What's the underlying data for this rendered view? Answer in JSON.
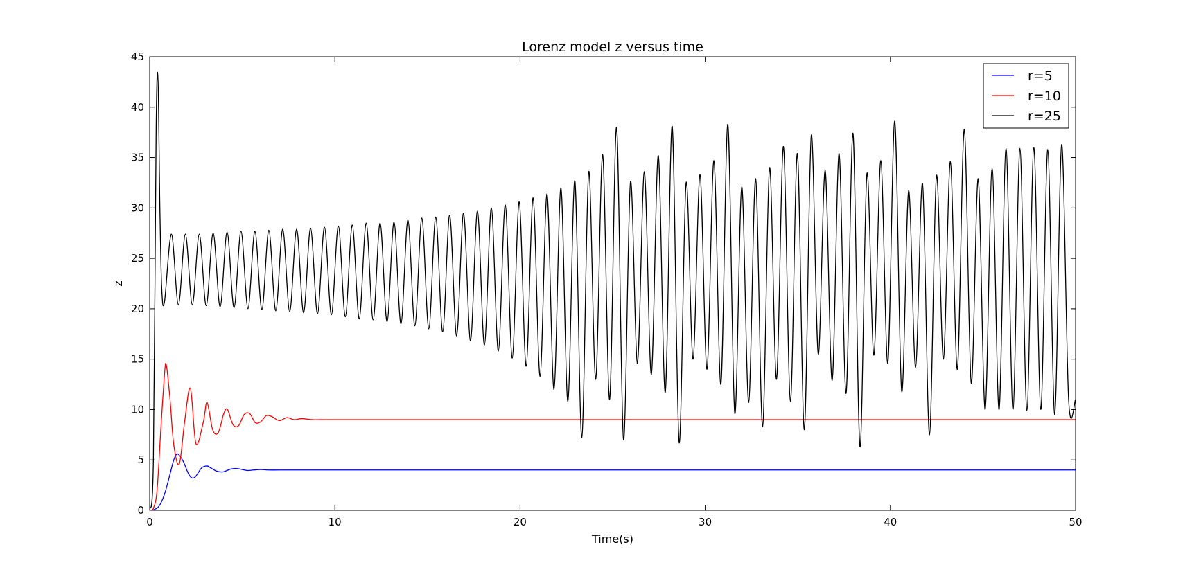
{
  "chart_data": {
    "type": "line",
    "title": "Lorenz model z versus time",
    "xlabel": "Time(s)",
    "ylabel": "z",
    "xlim": [
      0,
      50
    ],
    "ylim": [
      0,
      45
    ],
    "xticks": [
      "0",
      "10",
      "20",
      "30",
      "40",
      "50"
    ],
    "yticks": [
      "0",
      "5",
      "10",
      "15",
      "20",
      "25",
      "30",
      "35",
      "40",
      "45"
    ],
    "grid": false,
    "legend_position": "top-right",
    "series": [
      {
        "name": "r=5",
        "color": "#0000ff",
        "x": [
          0,
          0.2,
          0.5,
          0.8,
          1.1,
          1.3,
          1.5,
          1.8,
          2.1,
          2.3,
          2.5,
          2.8,
          3.1,
          3.3,
          3.6,
          3.9,
          4.1,
          4.4,
          4.7,
          5.0,
          5.3,
          5.6,
          6.0,
          6.4,
          7.0,
          8.0,
          10,
          20,
          30,
          40,
          50
        ],
        "y": [
          0,
          0.05,
          0.4,
          1.6,
          3.6,
          5.0,
          5.6,
          4.9,
          3.6,
          3.2,
          3.4,
          4.2,
          4.4,
          4.2,
          3.9,
          3.8,
          3.9,
          4.1,
          4.15,
          4.05,
          3.95,
          4.0,
          4.05,
          4.0,
          4.0,
          4.0,
          4.0,
          4.0,
          4.0,
          4.0,
          4.0
        ]
      },
      {
        "name": "r=10",
        "color": "#ff0000",
        "x": [
          0,
          0.2,
          0.4,
          0.6,
          0.8,
          0.9,
          1.1,
          1.3,
          1.6,
          1.9,
          2.2,
          2.5,
          2.9,
          3.1,
          3.4,
          3.7,
          4.0,
          4.2,
          4.5,
          4.8,
          5.1,
          5.4,
          5.7,
          6.0,
          6.3,
          6.6,
          7.0,
          7.4,
          7.8,
          8.2,
          8.8,
          9.5,
          10.5,
          12,
          20,
          30,
          40,
          50
        ],
        "y": [
          0,
          0.2,
          2.0,
          8.0,
          13.5,
          14.4,
          11.0,
          6.5,
          4.6,
          9.0,
          12.1,
          6.6,
          8.8,
          10.7,
          8.0,
          7.7,
          9.6,
          10.0,
          8.5,
          8.4,
          9.5,
          9.6,
          8.7,
          8.8,
          9.4,
          9.3,
          8.9,
          9.2,
          9.0,
          9.1,
          9.0,
          9.0,
          9.0,
          9.0,
          9.0,
          9.0,
          9.0,
          9.0
        ]
      },
      {
        "name": "r=25",
        "color": "#000000",
        "x": [
          0,
          0.2,
          0.35,
          0.45,
          0.55,
          0.65,
          0.8,
          50
        ],
        "y": [
          0,
          5,
          38,
          42.7,
          30,
          22,
          20.7,
          11
        ]
      }
    ],
    "r25_oscillation": {
      "t_start": 0.8,
      "t_end": 50,
      "peaks": [
        [
          1.15,
          27.4
        ],
        [
          1.8,
          27.4
        ],
        [
          2.45,
          27.4
        ],
        [
          3.1,
          27.5
        ],
        [
          3.75,
          27.6
        ],
        [
          4.4,
          27.7
        ],
        [
          5.05,
          27.7
        ],
        [
          5.7,
          27.8
        ],
        [
          6.35,
          27.9
        ],
        [
          7.0,
          27.9
        ],
        [
          7.65,
          28.0
        ],
        [
          8.3,
          28.1
        ],
        [
          8.95,
          28.2
        ],
        [
          9.6,
          28.3
        ],
        [
          10.25,
          28.5
        ],
        [
          10.9,
          28.5
        ],
        [
          11.55,
          28.6
        ],
        [
          12.2,
          28.8
        ],
        [
          12.85,
          29.0
        ],
        [
          13.5,
          29.1
        ],
        [
          14.15,
          29.3
        ],
        [
          14.8,
          29.5
        ],
        [
          15.45,
          29.7
        ],
        [
          16.1,
          30.0
        ],
        [
          16.75,
          30.3
        ],
        [
          17.4,
          30.6
        ],
        [
          18.05,
          31.0
        ],
        [
          18.7,
          31.4
        ],
        [
          19.35,
          32.0
        ],
        [
          20.0,
          32.7
        ],
        [
          20.65,
          33.6
        ],
        [
          21.3,
          35.3
        ],
        [
          22.3,
          38.0
        ],
        [
          23.0,
          32.6
        ],
        [
          23.6,
          33.6
        ],
        [
          24.3,
          35.2
        ],
        [
          25.3,
          38.1
        ],
        [
          26.0,
          32.5
        ],
        [
          26.6,
          33.3
        ],
        [
          27.3,
          34.7
        ],
        [
          28.3,
          38.3
        ],
        [
          29.0,
          32.1
        ],
        [
          29.6,
          32.9
        ],
        [
          30.3,
          34.0
        ],
        [
          31.0,
          36.1
        ],
        [
          31.7,
          35.4
        ],
        [
          32.5,
          37.2
        ],
        [
          33.2,
          33.7
        ],
        [
          33.9,
          35.4
        ],
        [
          34.6,
          37.4
        ],
        [
          35.4,
          33.4
        ],
        [
          36.1,
          34.7
        ],
        [
          36.9,
          38.6
        ],
        [
          37.6,
          31.7
        ],
        [
          38.2,
          32.4
        ],
        [
          38.8,
          33.2
        ],
        [
          39.5,
          34.6
        ],
        [
          40.4,
          37.8
        ],
        [
          41.1,
          32.9
        ],
        [
          41.7,
          33.9
        ],
        [
          42.4,
          35.9
        ],
        [
          43.1,
          35.9
        ],
        [
          43.8,
          36.0
        ],
        [
          44.6,
          35.8
        ],
        [
          45.4,
          36.3
        ]
      ],
      "troughs": [
        [
          1.5,
          20.4
        ],
        [
          2.15,
          20.4
        ],
        [
          2.8,
          20.3
        ],
        [
          3.45,
          20.2
        ],
        [
          4.1,
          20.1
        ],
        [
          4.75,
          20.0
        ],
        [
          5.4,
          19.9
        ],
        [
          6.05,
          19.8
        ],
        [
          6.7,
          19.7
        ],
        [
          7.35,
          19.6
        ],
        [
          8.0,
          19.5
        ],
        [
          8.65,
          19.4
        ],
        [
          9.3,
          19.2
        ],
        [
          9.95,
          19.0
        ],
        [
          10.6,
          18.9
        ],
        [
          11.25,
          18.7
        ],
        [
          11.9,
          18.5
        ],
        [
          12.55,
          18.3
        ],
        [
          13.2,
          18.0
        ],
        [
          13.85,
          17.7
        ],
        [
          14.5,
          17.3
        ],
        [
          15.15,
          16.8
        ],
        [
          15.8,
          16.4
        ],
        [
          16.45,
          15.8
        ],
        [
          17.1,
          15.1
        ],
        [
          17.75,
          14.3
        ],
        [
          18.4,
          13.3
        ],
        [
          19.05,
          12.0
        ],
        [
          19.7,
          10.8
        ],
        [
          20.35,
          7.2
        ],
        [
          20.8,
          13.0
        ],
        [
          21.5,
          11.0
        ],
        [
          22.6,
          7.0
        ],
        [
          23.3,
          14.6
        ],
        [
          23.9,
          13.5
        ],
        [
          24.8,
          11.7
        ],
        [
          25.7,
          6.7
        ],
        [
          26.3,
          15.0
        ],
        [
          27.0,
          14.0
        ],
        [
          27.8,
          12.5
        ],
        [
          28.6,
          9.6
        ],
        [
          29.3,
          10.7
        ],
        [
          30.0,
          8.3
        ],
        [
          30.7,
          13.0
        ],
        [
          31.3,
          10.8
        ],
        [
          32.0,
          8.0
        ],
        [
          32.8,
          15.5
        ],
        [
          33.5,
          12.9
        ],
        [
          34.2,
          11.6
        ],
        [
          34.9,
          6.3
        ],
        [
          35.7,
          15.4
        ],
        [
          36.4,
          14.6
        ],
        [
          37.2,
          11.8
        ],
        [
          38.0,
          14.2
        ],
        [
          38.5,
          7.5
        ],
        [
          39.2,
          15.0
        ],
        [
          39.8,
          14.0
        ],
        [
          40.6,
          12.6
        ],
        [
          41.4,
          10.0
        ],
        [
          42.1,
          10.0
        ],
        [
          42.8,
          10.0
        ],
        [
          43.5,
          9.9
        ],
        [
          44.2,
          10.0
        ],
        [
          45.0,
          9.5
        ],
        [
          45.8,
          11.0
        ]
      ]
    }
  }
}
